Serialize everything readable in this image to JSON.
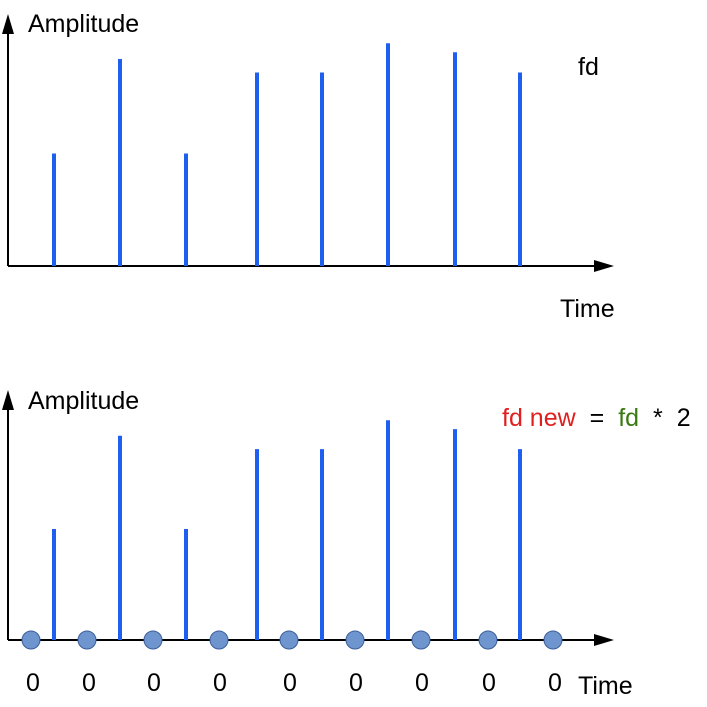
{
  "top_panel": {
    "y_axis_label": "Amplitude",
    "x_axis_label": "Time",
    "rate_label": "fd",
    "sample_levels": [
      0.5,
      0.92,
      0.5,
      0.86,
      0.86,
      0.99,
      0.95,
      0.86
    ]
  },
  "bottom_panel": {
    "y_axis_label": "Amplitude",
    "x_axis_label": "Time",
    "formula": {
      "lhs": "fd new",
      "equals": "=",
      "rhs_var": "fd",
      "operator": "*",
      "factor": "2"
    },
    "sample_levels": [
      0.5,
      0.92,
      0.5,
      0.86,
      0.86,
      0.99,
      0.95,
      0.86
    ],
    "zero_labels": [
      "0",
      "0",
      "0",
      "0",
      "0",
      "0",
      "0",
      "0",
      "0"
    ]
  },
  "colors": {
    "sample_line": "#1f5ff0",
    "zero_marker_fill": "#6f95cf",
    "zero_marker_stroke": "#3b5f9a",
    "fd_green": "#3a7a12",
    "fd_new_red": "#e02020",
    "axis": "#000000"
  }
}
